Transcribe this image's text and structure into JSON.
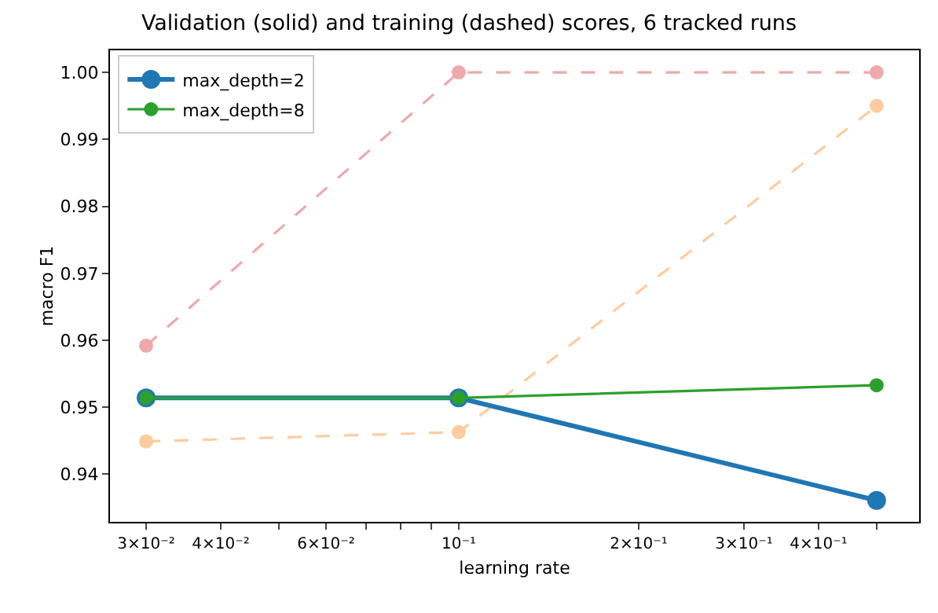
{
  "chart_data": {
    "type": "line",
    "title": "Validation (solid) and training (dashed) scores, 6 tracked runs",
    "xlabel": "learning rate",
    "ylabel": "macro F1",
    "log": "x",
    "x": [
      0.03,
      0.1,
      0.5
    ],
    "series": [
      {
        "name": "max_depth=2",
        "color": "#1f77b4",
        "line_style": "solid",
        "values": [
          0.9514,
          0.9514,
          0.9361
        ]
      },
      {
        "name": "max_depth=8",
        "color": "#2ca02c",
        "line_style": "solid",
        "values": [
          0.9514,
          0.9514,
          0.9533
        ]
      },
      {
        "color": "#efa9a9",
        "line_style": "dashed",
        "values": [
          0.9592,
          1.0,
          1.0
        ]
      },
      {
        "color": "#ffcc9f",
        "line_style": "dashed",
        "values": [
          0.9449,
          0.9463,
          0.995
        ]
      }
    ],
    "xlim": [
      0.0261,
      0.589
    ],
    "ylim": [
      0.9329,
      1.0033
    ],
    "xticks": [
      {
        "value": 0.03,
        "label": "3×10⁻²"
      },
      {
        "value": 0.04,
        "label": "4×10⁻²"
      },
      {
        "value": 0.05,
        "label": null
      },
      {
        "value": 0.06,
        "label": "6×10⁻²"
      },
      {
        "value": 0.07,
        "label": null
      },
      {
        "value": 0.08,
        "label": null
      },
      {
        "value": 0.09,
        "label": null
      },
      {
        "value": 0.1,
        "label": "10⁻¹"
      },
      {
        "value": 0.2,
        "label": "2×10⁻¹"
      },
      {
        "value": 0.3,
        "label": "3×10⁻¹"
      },
      {
        "value": 0.4,
        "label": "4×10⁻¹"
      },
      {
        "value": 0.5,
        "label": null
      }
    ],
    "yticks": [
      {
        "value": 0.94,
        "label": "0.94"
      },
      {
        "value": 0.95,
        "label": "0.95"
      },
      {
        "value": 0.96,
        "label": "0.96"
      },
      {
        "value": 0.97,
        "label": "0.97"
      },
      {
        "value": 0.98,
        "label": "0.98"
      },
      {
        "value": 0.99,
        "label": "0.99"
      },
      {
        "value": 1.0,
        "label": "1.00"
      }
    ],
    "grid": false,
    "legend": "top left",
    "marker": "circle"
  }
}
